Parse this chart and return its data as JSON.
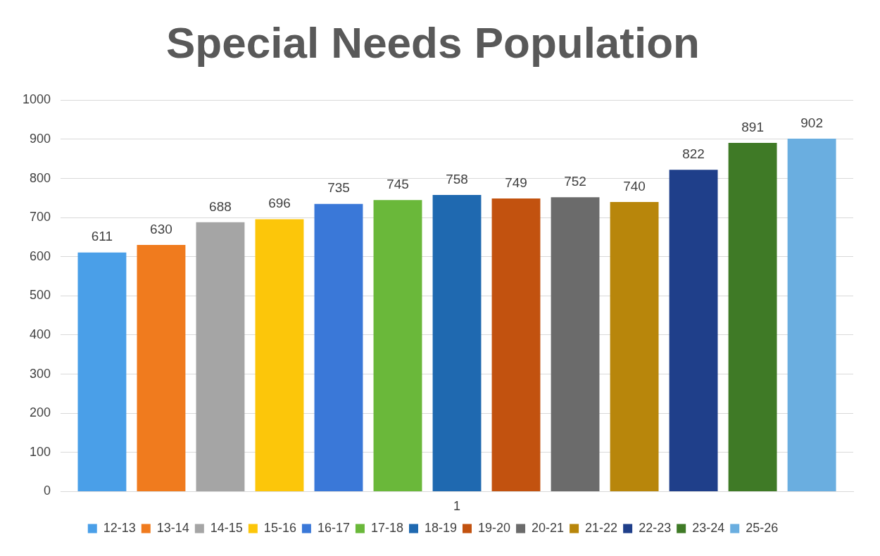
{
  "chart_data": {
    "type": "bar",
    "title": "Special Needs Population",
    "categories": [
      "1"
    ],
    "series": [
      {
        "name": "12-13",
        "color": "#4a9fe8",
        "values": [
          611
        ]
      },
      {
        "name": "13-14",
        "color": "#f07b1e",
        "values": [
          630
        ]
      },
      {
        "name": "14-15",
        "color": "#a5a5a5",
        "values": [
          688
        ]
      },
      {
        "name": "15-16",
        "color": "#fcc60a",
        "values": [
          696
        ]
      },
      {
        "name": "16-17",
        "color": "#3a78d8",
        "values": [
          735
        ]
      },
      {
        "name": "17-18",
        "color": "#6ab83a",
        "values": [
          745
        ]
      },
      {
        "name": "18-19",
        "color": "#1f69b0",
        "values": [
          758
        ]
      },
      {
        "name": "19-20",
        "color": "#c2520f",
        "values": [
          749
        ]
      },
      {
        "name": "20-21",
        "color": "#6b6b6b",
        "values": [
          752
        ]
      },
      {
        "name": "21-22",
        "color": "#b8860b",
        "values": [
          740
        ]
      },
      {
        "name": "22-23",
        "color": "#1f3f8a",
        "values": [
          822
        ]
      },
      {
        "name": "23-24",
        "color": "#3f7a26",
        "values": [
          891
        ]
      },
      {
        "name": "25-26",
        "color": "#6aaee0",
        "values": [
          902
        ]
      }
    ],
    "ylim": [
      0,
      1000
    ],
    "yticks": [
      0,
      100,
      200,
      300,
      400,
      500,
      600,
      700,
      800,
      900,
      1000
    ],
    "grid": "y",
    "legend": "bottom",
    "data_labels": true
  }
}
